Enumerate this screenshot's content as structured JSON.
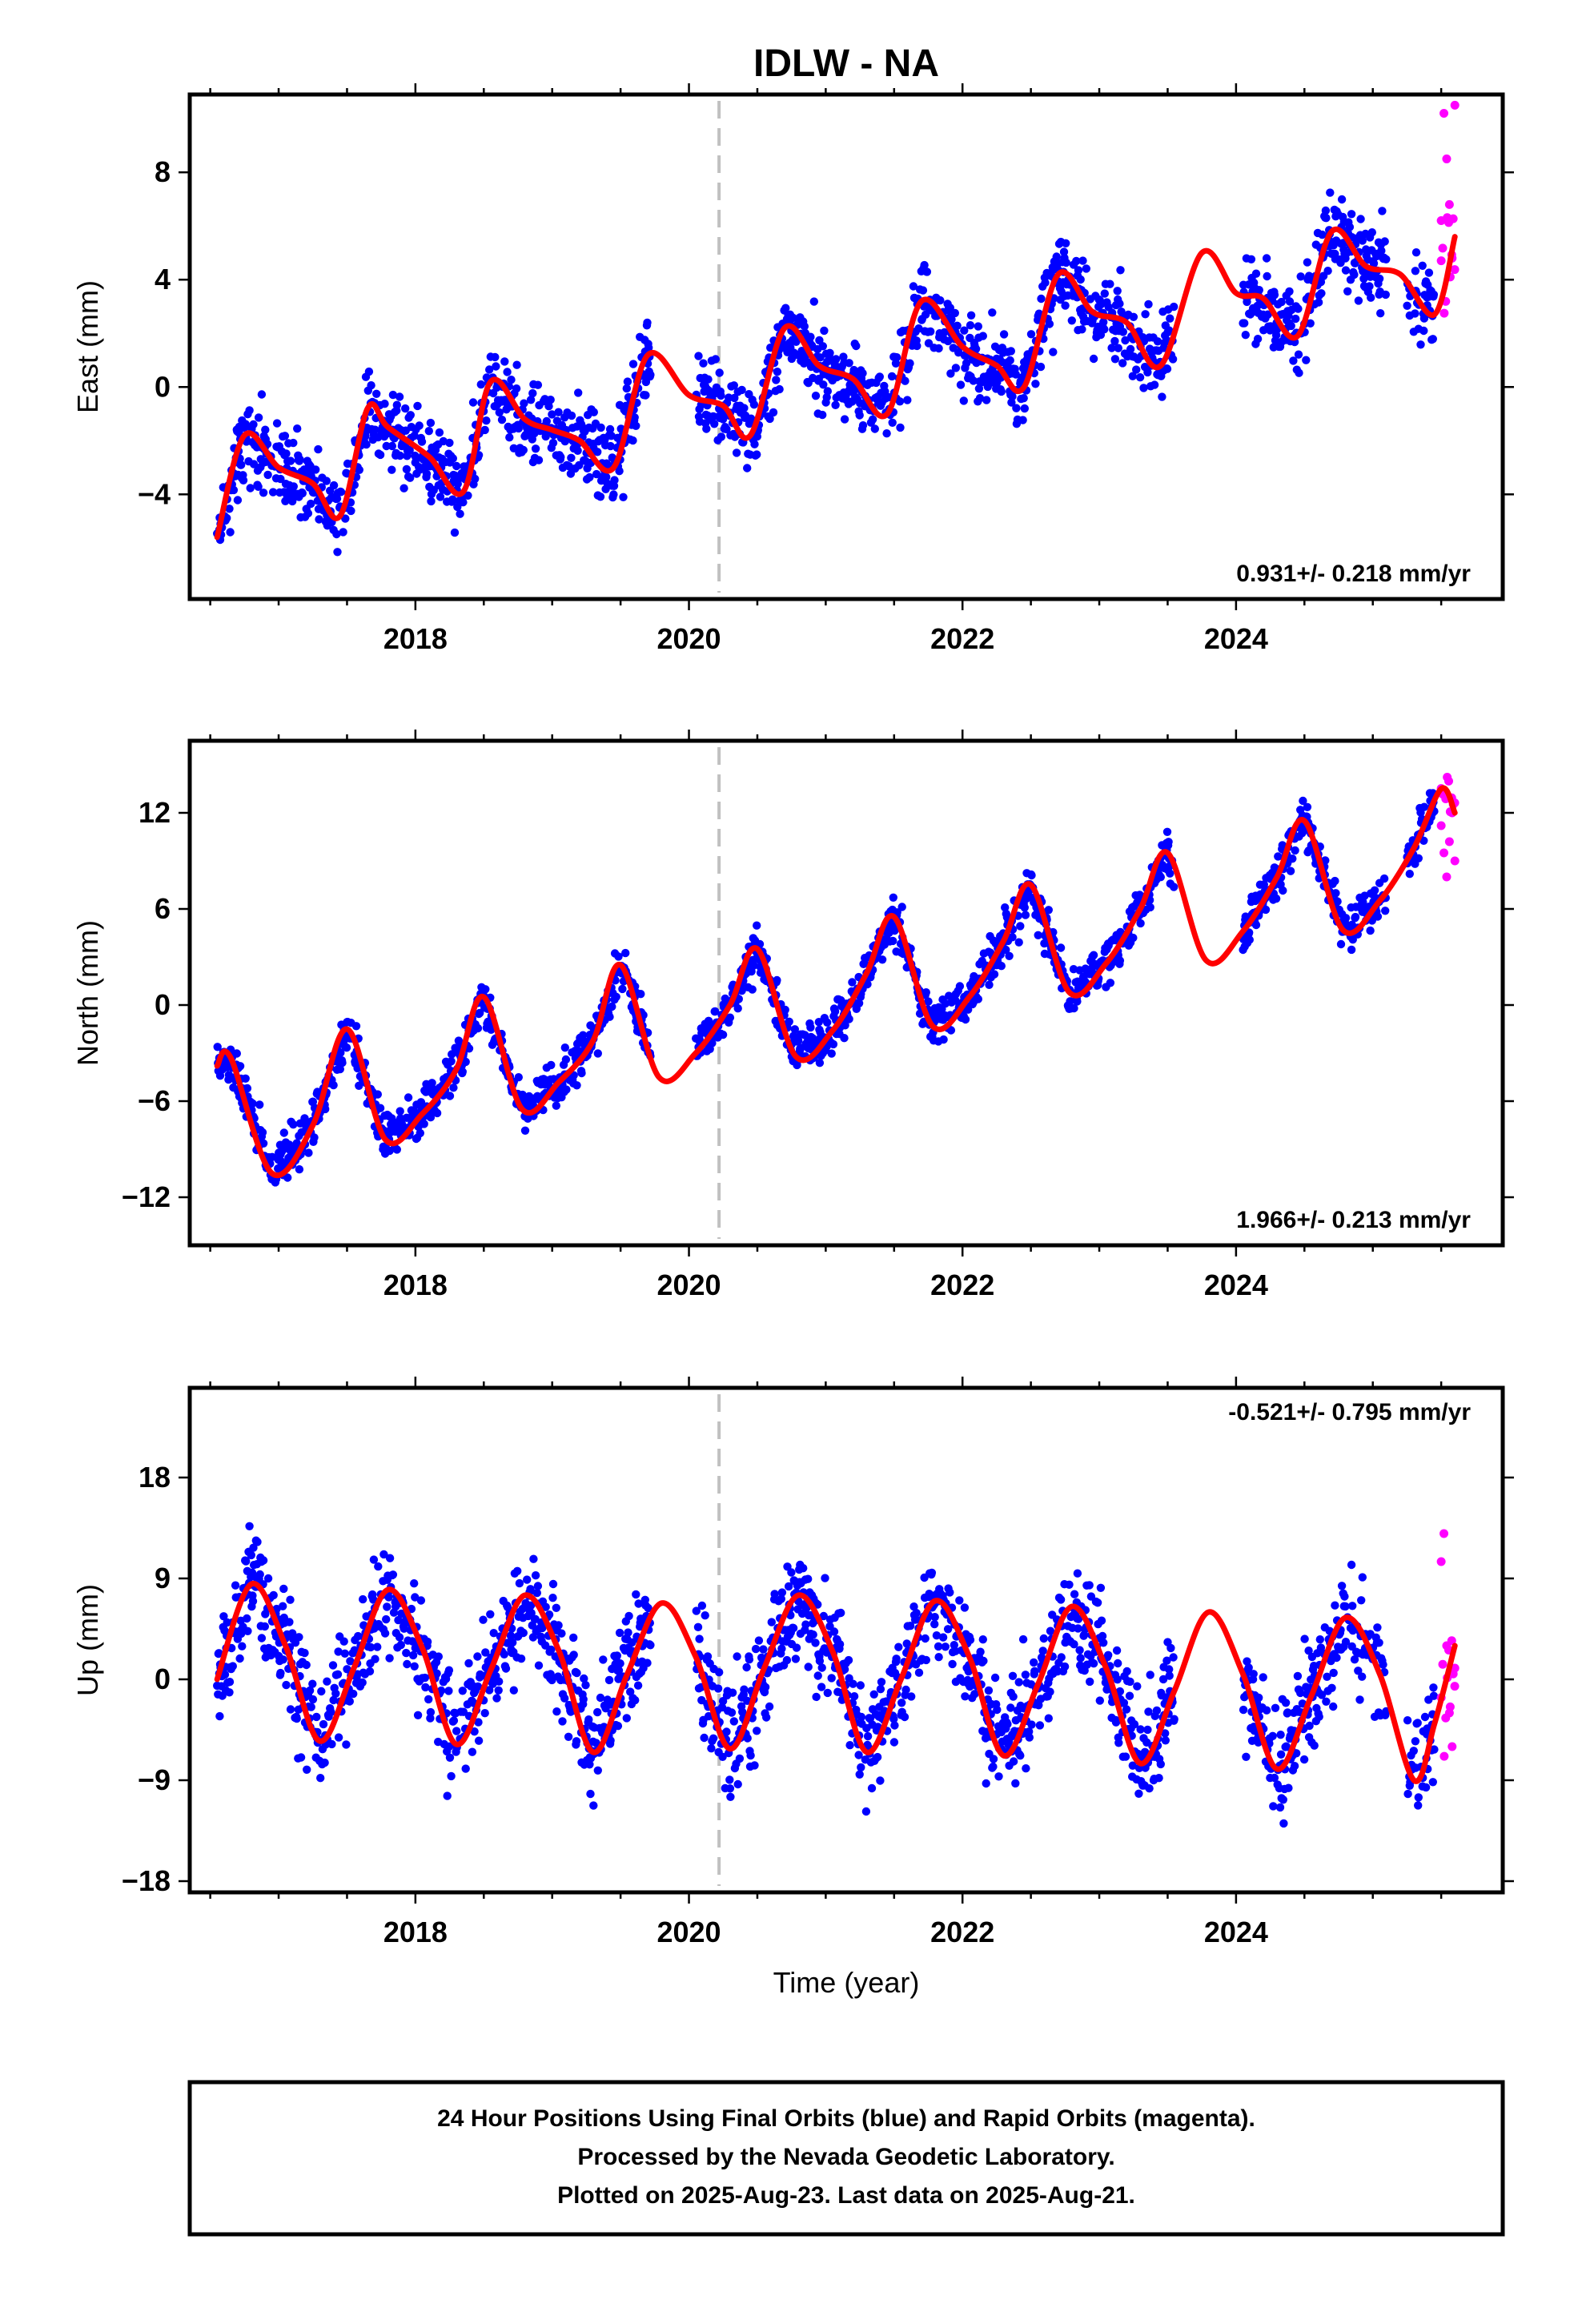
{
  "title": "IDLW - NA",
  "footer_lines": [
    "24 Hour Positions Using Final Orbits (blue) and Rapid Orbits (magenta).",
    "Processed by the Nevada Geodetic Laboratory.",
    "Plotted on 2025-Aug-23. Last data on 2025-Aug-21."
  ],
  "xlabel": "Time (year)",
  "colors": {
    "final": "#0000ff",
    "rapid": "#ff00ff",
    "fit": "#ff0000",
    "marker": "#c0c0c0"
  },
  "chart_data": [
    {
      "type": "scatter",
      "panel": "east",
      "ylabel": "East (mm)",
      "xlim": [
        2016.35,
        2025.95
      ],
      "ylim": [
        -7.9,
        10.9
      ],
      "yticks": [
        8,
        4,
        0,
        -4
      ],
      "ytick_labels": [
        "8",
        "4",
        "0",
        "−4"
      ],
      "xticks": [
        2018,
        2020,
        2022,
        2024
      ],
      "rate_label": "0.931+/- 0.218 mm/yr",
      "rate_position": "bottom-right",
      "marker_line_x": 2020.22,
      "gap": [
        2023.55,
        2024.05
      ],
      "series": [
        {
          "name": "Final Orbits (blue)",
          "color": "#0000ff",
          "x_range": [
            2016.55,
            2025.45
          ],
          "trend": 0.931,
          "start": -3.8,
          "seasonal_amp": 1.8,
          "seasonal_phase": 0.4,
          "noise": 1.3
        },
        {
          "name": "Rapid Orbits (magenta)",
          "color": "#ff00ff",
          "x": [
            2025.5,
            2025.52,
            2025.54,
            2025.56,
            2025.58,
            2025.6
          ],
          "y": [
            6.2,
            10.2,
            8.5,
            6.8,
            4.8,
            10.5
          ]
        }
      ],
      "fit_curve": {
        "color": "#ff0000",
        "x": [
          2016.55,
          2016.75,
          2017.0,
          2017.25,
          2017.45,
          2017.65,
          2017.8,
          2018.1,
          2018.35,
          2018.55,
          2018.8,
          2019.0,
          2019.2,
          2019.45,
          2019.7,
          2020.0,
          2020.25,
          2020.45,
          2020.7,
          2020.95,
          2021.2,
          2021.45,
          2021.7,
          2022.0,
          2022.25,
          2022.45,
          2022.7,
          2022.95,
          2023.2,
          2023.45,
          2023.75,
          2024.0,
          2024.2,
          2024.45,
          2024.7,
          2024.95,
          2025.2,
          2025.45,
          2025.6
        ],
        "y": [
          -5.6,
          -1.8,
          -3.0,
          -3.6,
          -4.8,
          -0.8,
          -1.5,
          -2.6,
          -3.9,
          0.2,
          -1.2,
          -1.6,
          -2.0,
          -3.0,
          1.2,
          -0.3,
          -0.7,
          -1.8,
          2.2,
          0.8,
          0.3,
          -1.0,
          3.2,
          1.5,
          0.8,
          0.0,
          4.2,
          2.8,
          2.4,
          0.8,
          5.0,
          3.5,
          3.3,
          1.9,
          5.8,
          4.5,
          4.2,
          2.7,
          5.6
        ]
      }
    },
    {
      "type": "scatter",
      "panel": "north",
      "ylabel": "North (mm)",
      "xlim": [
        2016.35,
        2025.95
      ],
      "ylim": [
        -15.0,
        16.5
      ],
      "yticks": [
        12,
        6,
        0,
        -6,
        -12
      ],
      "ytick_labels": [
        "12",
        "6",
        "0",
        "−6",
        "−12"
      ],
      "xticks": [
        2018,
        2020,
        2022,
        2024
      ],
      "rate_label": "1.966+/- 0.213 mm/yr",
      "rate_position": "bottom-right",
      "marker_line_x": 2020.22,
      "gap": [
        2023.55,
        2024.05
      ],
      "series": [
        {
          "name": "Final Orbits (blue)",
          "color": "#0000ff",
          "x_range": [
            2016.55,
            2025.45
          ],
          "trend": 1.966,
          "start": -6.0,
          "seasonal_amp": 5.0,
          "seasonal_phase": 0.25,
          "noise": 1.2
        },
        {
          "name": "Rapid Orbits (magenta)",
          "color": "#ff00ff",
          "x": [
            2025.5,
            2025.52,
            2025.54,
            2025.56,
            2025.58,
            2025.6
          ],
          "y": [
            11.2,
            9.5,
            8.0,
            10.2,
            12.0,
            9.0
          ]
        }
      ],
      "fit_curve": {
        "color": "#ff0000",
        "x": [
          2016.55,
          2016.65,
          2016.95,
          2017.25,
          2017.5,
          2017.78,
          2018.05,
          2018.3,
          2018.5,
          2018.78,
          2019.05,
          2019.3,
          2019.5,
          2019.78,
          2020.05,
          2020.3,
          2020.5,
          2020.78,
          2021.05,
          2021.3,
          2021.5,
          2021.78,
          2022.05,
          2022.3,
          2022.5,
          2022.78,
          2023.05,
          2023.3,
          2023.5,
          2023.78,
          2024.05,
          2024.3,
          2024.5,
          2024.78,
          2025.05,
          2025.3,
          2025.5,
          2025.6
        ],
        "y": [
          -3.8,
          -3.3,
          -10.5,
          -7.5,
          -1.5,
          -8.4,
          -6.8,
          -4.0,
          0.5,
          -6.5,
          -4.8,
          -2.2,
          2.5,
          -4.5,
          -3.0,
          0.0,
          3.5,
          -3.2,
          -1.6,
          2.0,
          5.5,
          -1.3,
          0.5,
          4.0,
          7.5,
          0.8,
          2.6,
          6.0,
          9.5,
          2.8,
          4.6,
          8.0,
          11.5,
          4.7,
          6.5,
          9.8,
          13.5,
          12.0
        ]
      }
    },
    {
      "type": "scatter",
      "panel": "up",
      "ylabel": "Up (mm)",
      "xlim": [
        2016.35,
        2025.95
      ],
      "ylim": [
        -19.0,
        26.0
      ],
      "yticks": [
        18,
        9,
        0,
        -9,
        -18
      ],
      "ytick_labels": [
        "18",
        "9",
        "0",
        "−9",
        "−18"
      ],
      "xticks": [
        2018,
        2020,
        2022,
        2024
      ],
      "rate_label": "-0.521+/- 0.795 mm/yr",
      "rate_position": "top-right",
      "marker_line_x": 2020.22,
      "gap": [
        2023.55,
        2024.05
      ],
      "series": [
        {
          "name": "Final Orbits (blue)",
          "color": "#0000ff",
          "x_range": [
            2016.55,
            2025.45
          ],
          "trend": -0.521,
          "start": 2.0,
          "seasonal_amp": 7.5,
          "seasonal_phase": 0.05,
          "noise": 4.2
        },
        {
          "name": "Rapid Orbits (magenta)",
          "color": "#ff00ff",
          "x": [
            2025.5,
            2025.52,
            2025.54,
            2025.56,
            2025.58,
            2025.6
          ],
          "y": [
            10.5,
            13.0,
            3.0,
            -3.0,
            -6.0,
            1.0
          ]
        }
      ],
      "fit_curve": {
        "color": "#ff0000",
        "x": [
          2016.55,
          2016.8,
          2017.05,
          2017.3,
          2017.55,
          2017.8,
          2018.05,
          2018.3,
          2018.55,
          2018.8,
          2019.05,
          2019.3,
          2019.55,
          2019.8,
          2020.05,
          2020.3,
          2020.55,
          2020.8,
          2021.05,
          2021.3,
          2021.55,
          2021.8,
          2022.05,
          2022.3,
          2022.55,
          2022.8,
          2023.05,
          2023.3,
          2023.55,
          2023.8,
          2024.05,
          2024.3,
          2024.55,
          2024.8,
          2025.05,
          2025.3,
          2025.45,
          2025.6
        ],
        "y": [
          0.0,
          8.5,
          3.0,
          -5.5,
          1.0,
          8.0,
          2.8,
          -5.8,
          0.8,
          7.5,
          2.5,
          -6.5,
          0.5,
          6.8,
          2.0,
          -6.2,
          1.0,
          7.5,
          2.5,
          -6.5,
          0.0,
          7.0,
          2.0,
          -6.8,
          -0.5,
          6.5,
          1.0,
          -7.5,
          -1.0,
          6.0,
          0.5,
          -8.0,
          -1.5,
          5.5,
          0.5,
          -9.0,
          -4.0,
          3.0
        ]
      }
    }
  ]
}
